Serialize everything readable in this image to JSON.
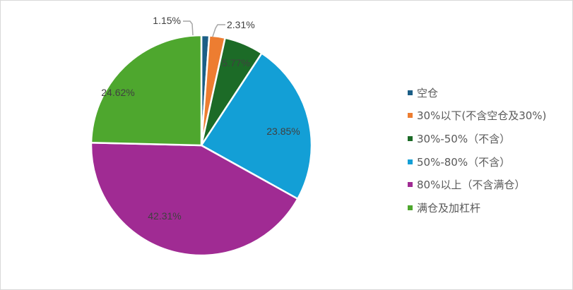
{
  "chart_data": {
    "type": "pie",
    "categories": [
      "空仓",
      "30%以下(不含空仓及30%)",
      "30%-50%（不含）",
      "50%-80%（不含）",
      "80%以上（不含满仓）",
      "满仓及加杠杆"
    ],
    "values": [
      1.15,
      2.31,
      5.77,
      23.85,
      42.31,
      24.62
    ],
    "data_labels": [
      "1.15%",
      "2.31%",
      "5.77%",
      "23.85%",
      "42.31%",
      "24.62%"
    ],
    "colors": [
      "#1b5e86",
      "#ed7d31",
      "#1c6b27",
      "#139fd6",
      "#a02b93",
      "#4ea72e"
    ],
    "start_angle": "top",
    "direction": "clockwise",
    "legend_position": "right"
  }
}
